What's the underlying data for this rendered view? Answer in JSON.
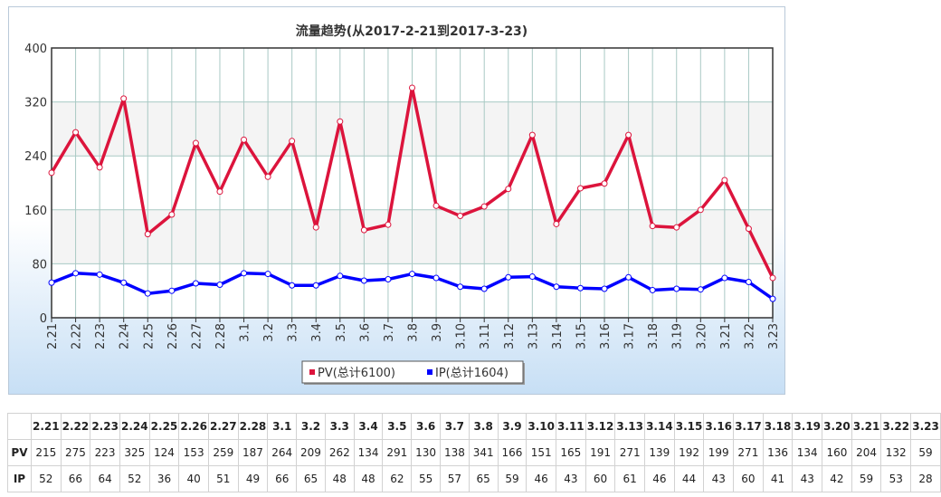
{
  "chart_data": {
    "type": "line",
    "title": "流量趋势(从2017-2-21到2017-3-23)",
    "categories": [
      "2.21",
      "2.22",
      "2.23",
      "2.24",
      "2.25",
      "2.26",
      "2.27",
      "2.28",
      "3.1",
      "3.2",
      "3.3",
      "3.4",
      "3.5",
      "3.6",
      "3.7",
      "3.8",
      "3.9",
      "3.10",
      "3.11",
      "3.12",
      "3.13",
      "3.14",
      "3.15",
      "3.16",
      "3.17",
      "3.18",
      "3.19",
      "3.20",
      "3.21",
      "3.22",
      "3.23"
    ],
    "series": [
      {
        "name": "PV(总计6100)",
        "color": "#dc143c",
        "values": [
          215,
          275,
          223,
          325,
          124,
          153,
          259,
          187,
          264,
          209,
          262,
          134,
          291,
          130,
          138,
          341,
          166,
          151,
          165,
          191,
          271,
          139,
          192,
          199,
          271,
          136,
          134,
          160,
          204,
          132,
          59
        ]
      },
      {
        "name": "IP(总计1604)",
        "color": "#0000ff",
        "values": [
          52,
          66,
          64,
          52,
          36,
          40,
          51,
          49,
          66,
          65,
          48,
          48,
          62,
          55,
          57,
          65,
          59,
          46,
          43,
          60,
          61,
          46,
          44,
          43,
          60,
          41,
          43,
          42,
          59,
          53,
          28
        ]
      }
    ],
    "yticks": [
      0,
      80,
      160,
      240,
      320,
      400
    ],
    "ylim": [
      0,
      400
    ],
    "grid": true,
    "legend_position": "bottom"
  },
  "table": {
    "row_labels": [
      "PV",
      "IP"
    ]
  }
}
